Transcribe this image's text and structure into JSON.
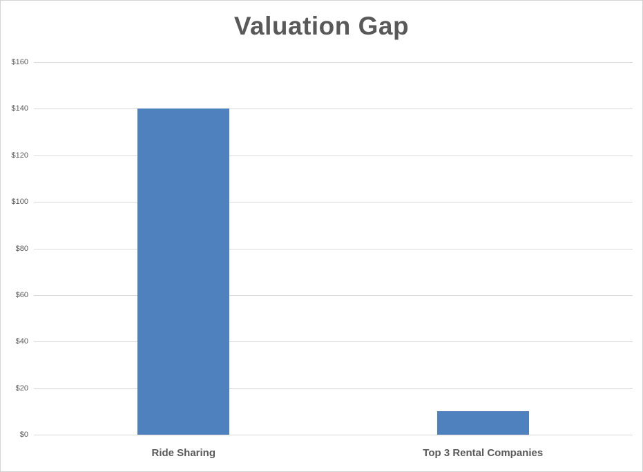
{
  "chart_data": {
    "type": "bar",
    "title": "Valuation Gap",
    "categories": [
      "Ride Sharing",
      "Top 3 Rental Companies"
    ],
    "values": [
      140,
      10
    ],
    "value_unit_prefix": "$",
    "ylim": [
      0,
      160
    ],
    "ytick_step": 20,
    "ytick_labels": [
      "$0",
      "$20",
      "$40",
      "$60",
      "$80",
      "$100",
      "$120",
      "$140",
      "$160"
    ],
    "xlabel": "",
    "ylabel": "",
    "legend_position": "none",
    "grid": true,
    "colors": {
      "bar": "#4E81BD",
      "gridline": "#D9D9D9",
      "title_text": "#595959",
      "axis_text": "#595959",
      "frame_border": "#D3D3D3",
      "background": "#FFFFFF"
    }
  }
}
